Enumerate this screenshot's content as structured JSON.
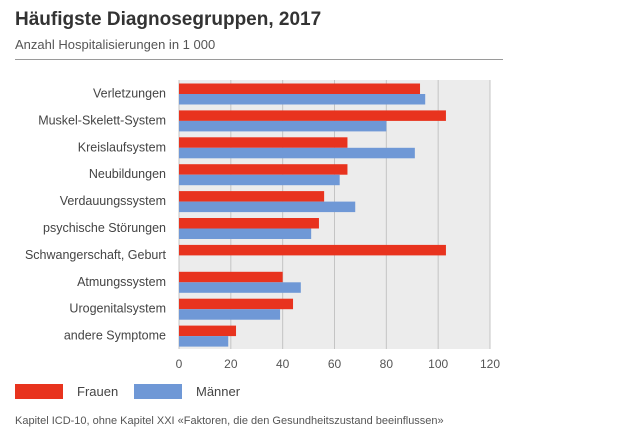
{
  "chart_data": {
    "type": "bar",
    "orientation": "horizontal",
    "title": "Häufigste Diagnosegruppen, 2017",
    "subtitle": "Anzahl Hospitalisierungen in 1 000",
    "categories": [
      "Verletzungen",
      "Muskel-Skelett-System",
      "Kreislaufsystem",
      "Neubildungen",
      "Verdauungssystem",
      "psychische Störungen",
      "Schwangerschaft, Geburt",
      "Atmungssystem",
      "Urogenitalsystem",
      "andere Symptome"
    ],
    "series": [
      {
        "name": "Frauen",
        "color": "#e8331e",
        "values": [
          93,
          103,
          65,
          65,
          56,
          54,
          103,
          40,
          44,
          22
        ]
      },
      {
        "name": "Männer",
        "color": "#6f98d6",
        "values": [
          95,
          80,
          91,
          62,
          68,
          51,
          null,
          47,
          39,
          19
        ]
      }
    ],
    "xlim": [
      0,
      120
    ],
    "xticks": [
      0,
      20,
      40,
      60,
      80,
      100,
      120
    ],
    "grid": true,
    "legend": "bottom-left",
    "footnote": "Kapitel ICD-10, ohne Kapitel XXI «Faktoren, die den Gesundheitszustand beeinflussen»"
  }
}
